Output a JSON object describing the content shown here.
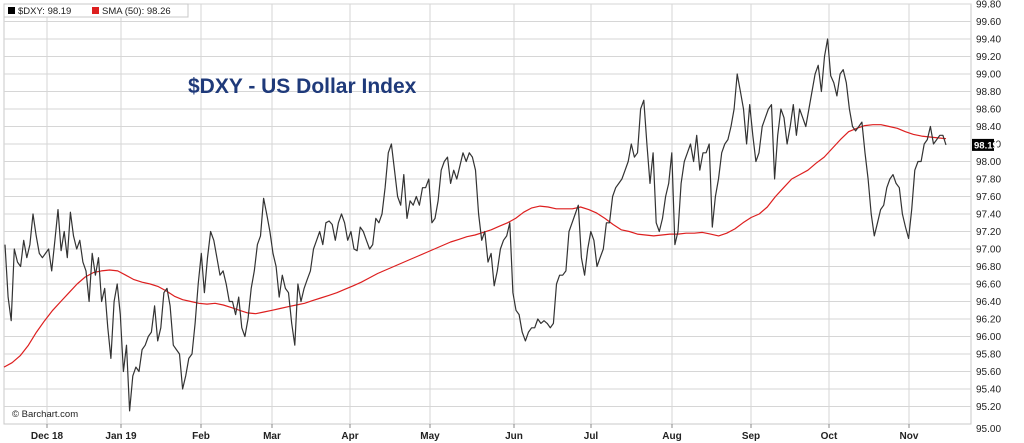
{
  "chart_data": {
    "type": "line",
    "title": "$DXY - US Dollar Index",
    "credit": "© Barchart.com",
    "x_labels": [
      "Dec 18",
      "Jan 19",
      "Feb",
      "Mar",
      "Apr",
      "May",
      "Jun",
      "Jul",
      "Aug",
      "Sep",
      "Oct",
      "Nov"
    ],
    "ylim": [
      95.0,
      99.8
    ],
    "yticks": [
      "95.20",
      "95.40",
      "95.60",
      "95.80",
      "96.00",
      "96.20",
      "96.40",
      "96.60",
      "96.80",
      "97.00",
      "97.20",
      "97.40",
      "97.60",
      "97.80",
      "98.00",
      "98.20",
      "98.40",
      "98.60",
      "98.80",
      "99.00",
      "99.20",
      "99.40",
      "99.60",
      "99.80"
    ],
    "axis_bottom_label": "95.00",
    "grid": true,
    "legend_position": "top-left",
    "last_value_label": "98.19",
    "colors": {
      "price": "#333333",
      "sma": "#dd1f1f",
      "title": "#1f3a7a",
      "last_value_bg": "#000000"
    },
    "series": [
      {
        "name": "$DXY",
        "legend": "$DXY: 98.19",
        "values": [
          97.05,
          96.45,
          96.18,
          97.0,
          96.85,
          96.8,
          97.1,
          96.9,
          97.05,
          97.4,
          97.15,
          96.95,
          96.9,
          96.95,
          97.0,
          96.75,
          97.1,
          97.45,
          96.98,
          97.2,
          96.9,
          97.42,
          97.15,
          97.0,
          97.1,
          96.85,
          96.75,
          96.4,
          96.95,
          96.7,
          96.9,
          96.4,
          96.55,
          96.1,
          95.75,
          96.4,
          96.6,
          96.25,
          95.6,
          95.9,
          95.15,
          95.55,
          95.65,
          95.6,
          95.85,
          95.9,
          96.0,
          96.05,
          96.35,
          95.95,
          96.1,
          96.5,
          96.55,
          96.35,
          95.9,
          95.85,
          95.8,
          95.4,
          95.55,
          95.75,
          95.8,
          96.15,
          96.6,
          96.95,
          96.5,
          96.9,
          97.2,
          97.1,
          96.9,
          96.7,
          96.75,
          96.6,
          96.4,
          96.4,
          96.25,
          96.45,
          96.1,
          96.0,
          96.2,
          96.55,
          96.75,
          97.05,
          97.15,
          97.58,
          97.4,
          97.2,
          96.95,
          96.8,
          96.45,
          96.7,
          96.55,
          96.5,
          96.15,
          95.9,
          96.6,
          96.4,
          96.55,
          96.65,
          96.75,
          97.0,
          97.1,
          97.2,
          97.05,
          97.3,
          97.32,
          97.28,
          97.1,
          97.3,
          97.4,
          97.3,
          97.1,
          97.2,
          97.0,
          96.98,
          97.25,
          97.2,
          97.1,
          97.0,
          97.05,
          97.35,
          97.3,
          97.4,
          97.7,
          98.1,
          98.2,
          97.9,
          97.6,
          97.5,
          97.85,
          97.35,
          97.55,
          97.5,
          97.6,
          97.5,
          97.7,
          97.7,
          97.8,
          97.3,
          97.35,
          97.55,
          97.9,
          98.0,
          98.05,
          97.75,
          97.9,
          97.8,
          97.95,
          98.1,
          98.0,
          98.1,
          98.05,
          97.9,
          97.4,
          97.1,
          97.2,
          96.85,
          96.95,
          96.58,
          96.75,
          97.0,
          97.1,
          97.15,
          97.3,
          96.5,
          96.3,
          96.25,
          96.05,
          95.95,
          96.05,
          96.1,
          96.1,
          96.2,
          96.15,
          96.18,
          96.15,
          96.1,
          96.15,
          96.6,
          96.7,
          96.7,
          96.75,
          97.2,
          97.3,
          97.4,
          97.5,
          96.9,
          96.7,
          97.0,
          97.2,
          97.1,
          96.8,
          96.9,
          97.0,
          97.3,
          97.3,
          97.6,
          97.7,
          97.75,
          97.8,
          97.9,
          98.0,
          98.2,
          98.05,
          98.1,
          98.6,
          98.7,
          98.2,
          97.75,
          98.1,
          97.3,
          97.2,
          97.35,
          97.6,
          97.75,
          98.1,
          97.05,
          97.2,
          97.75,
          98.0,
          98.1,
          98.2,
          98.0,
          98.3,
          97.9,
          98.1,
          98.1,
          98.2,
          97.25,
          97.6,
          97.8,
          98.1,
          98.2,
          98.25,
          98.4,
          98.6,
          99.0,
          98.8,
          98.6,
          98.2,
          98.65,
          98.3,
          98.0,
          98.1,
          98.4,
          98.5,
          98.6,
          98.65,
          97.8,
          98.3,
          98.6,
          98.5,
          98.2,
          98.4,
          98.65,
          98.3,
          98.6,
          98.5,
          98.4,
          98.6,
          98.8,
          99.0,
          99.1,
          98.8,
          99.2,
          99.4,
          98.98,
          98.9,
          98.75,
          99.0,
          99.05,
          98.9,
          98.6,
          98.4,
          98.35,
          98.4,
          98.45,
          98.1,
          97.8,
          97.4,
          97.15,
          97.3,
          97.45,
          97.5,
          97.7,
          97.8,
          97.85,
          97.75,
          97.7,
          97.4,
          97.25,
          97.12,
          97.45,
          97.9,
          98.0,
          98.0,
          98.2,
          98.25,
          98.4,
          98.2,
          98.25,
          98.3,
          98.3,
          98.19
        ]
      },
      {
        "name": "SMA (50)",
        "legend": "SMA (50): 98.26",
        "values": [
          95.65,
          95.7,
          95.78,
          95.9,
          96.05,
          96.18,
          96.3,
          96.4,
          96.5,
          96.6,
          96.68,
          96.73,
          96.75,
          96.76,
          96.75,
          96.7,
          96.65,
          96.62,
          96.6,
          96.57,
          96.52,
          96.46,
          96.42,
          96.4,
          96.38,
          96.37,
          96.38,
          96.36,
          96.33,
          96.3,
          96.27,
          96.26,
          96.28,
          96.3,
          96.32,
          96.34,
          96.36,
          96.38,
          96.41,
          96.44,
          96.47,
          96.5,
          96.54,
          96.58,
          96.62,
          96.67,
          96.72,
          96.76,
          96.8,
          96.84,
          96.88,
          96.92,
          96.96,
          97.0,
          97.04,
          97.08,
          97.11,
          97.14,
          97.16,
          97.19,
          97.22,
          97.26,
          97.3,
          97.35,
          97.42,
          97.47,
          97.49,
          97.48,
          97.46,
          97.46,
          97.46,
          97.48,
          97.45,
          97.41,
          97.35,
          97.28,
          97.22,
          97.2,
          97.17,
          97.16,
          97.15,
          97.16,
          97.17,
          97.17,
          97.18,
          97.18,
          97.19,
          97.17,
          97.15,
          97.18,
          97.23,
          97.3,
          97.36,
          97.4,
          97.48,
          97.6,
          97.7,
          97.8,
          97.85,
          97.9,
          97.98,
          98.05,
          98.15,
          98.25,
          98.34,
          98.38,
          98.41,
          98.42,
          98.42,
          98.4,
          98.38,
          98.34,
          98.31,
          98.29,
          98.28,
          98.27,
          98.26
        ]
      }
    ]
  }
}
